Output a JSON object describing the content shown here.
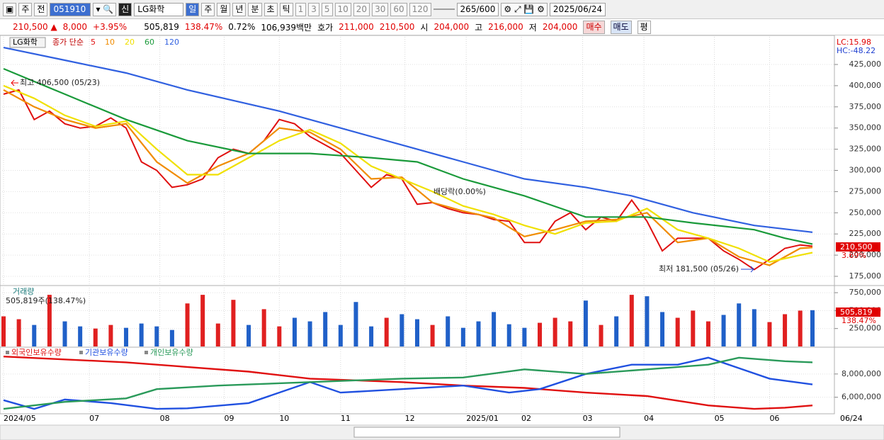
{
  "toolbar": [
    "주",
    "전",
    "051910",
    "LG화학",
    "신",
    "일",
    "주",
    "월",
    "년",
    "분",
    "초",
    "틱",
    "1",
    "3",
    "5",
    "10",
    "20",
    "30",
    "60",
    "120",
    "265",
    "/600",
    "2025/06/24"
  ],
  "info_bar": [
    "210,500 ▲",
    "8,000",
    "+3.95%",
    "505,819",
    "138.47%",
    "0.72%",
    "106,939백만",
    "호가",
    "211,000",
    "210,500",
    "시",
    "204,000",
    "고",
    "216,000",
    "저",
    "204,000",
    "매수",
    "매도",
    "평"
  ],
  "chart_data": [
    {
      "type": "line",
      "title": "LG화학",
      "legend_title": "종가 단순",
      "xlim": [
        0,
        264
      ],
      "ylim": [
        168300,
        452600
      ],
      "yticks": [
        {
          "value": 175000,
          "label": "175,000"
        },
        {
          "value": 200000,
          "label": "200,000"
        },
        {
          "value": 225000,
          "label": "225,000"
        },
        {
          "value": 250000,
          "label": "250,000"
        },
        {
          "value": 275000,
          "label": "275,000"
        },
        {
          "value": 300000,
          "label": "300,000"
        },
        {
          "value": 325000,
          "label": "325,000"
        },
        {
          "value": 350000,
          "label": "350,000"
        },
        {
          "value": 375000,
          "label": "375,000"
        },
        {
          "value": 400000,
          "label": "400,000"
        },
        {
          "value": 425000,
          "label": "425,000"
        }
      ],
      "grid": true,
      "series": [
        {
          "name": "5",
          "color": "#e01010",
          "x": [
            0,
            5,
            10,
            15,
            20,
            25,
            30,
            35,
            40,
            45,
            50,
            55,
            60,
            65,
            70,
            75,
            80,
            85,
            90,
            95,
            100,
            105,
            110,
            115,
            120,
            125,
            130,
            135,
            140,
            145,
            150,
            155,
            160,
            165,
            170,
            175,
            180,
            185,
            190,
            195,
            200,
            205,
            210,
            215,
            220,
            225,
            230,
            235,
            240,
            245,
            250,
            255,
            260,
            264
          ],
          "values": [
            390000,
            395000,
            360000,
            370000,
            355000,
            350000,
            352000,
            362000,
            350000,
            310000,
            300000,
            280000,
            283000,
            290000,
            315000,
            325000,
            320000,
            335000,
            360000,
            355000,
            340000,
            330000,
            320000,
            300000,
            280000,
            295000,
            290000,
            260000,
            262000,
            255000,
            250000,
            248000,
            242000,
            240000,
            215000,
            215000,
            240000,
            250000,
            230000,
            245000,
            240000,
            265000,
            240000,
            205000,
            220000,
            220000,
            220000,
            205000,
            195000,
            183000,
            195000,
            208000,
            212000,
            210500
          ]
        },
        {
          "name": "10",
          "color": "#f08c00",
          "x": [
            0,
            10,
            20,
            30,
            40,
            50,
            60,
            70,
            80,
            90,
            100,
            110,
            120,
            130,
            140,
            150,
            160,
            170,
            180,
            190,
            200,
            210,
            220,
            230,
            240,
            250,
            260,
            264
          ],
          "values": [
            395000,
            375000,
            360000,
            350000,
            355000,
            310000,
            285000,
            305000,
            320000,
            350000,
            345000,
            325000,
            290000,
            292000,
            262000,
            252000,
            244000,
            222000,
            230000,
            240000,
            242000,
            250000,
            215000,
            220000,
            198000,
            188000,
            208000,
            209000
          ]
        },
        {
          "name": "20",
          "color": "#f0e000",
          "x": [
            0,
            10,
            20,
            30,
            40,
            50,
            60,
            70,
            80,
            90,
            100,
            110,
            120,
            130,
            140,
            150,
            160,
            170,
            180,
            190,
            200,
            210,
            220,
            230,
            240,
            250,
            260,
            264
          ],
          "values": [
            400000,
            385000,
            365000,
            352000,
            358000,
            325000,
            295000,
            295000,
            315000,
            335000,
            348000,
            332000,
            305000,
            290000,
            275000,
            258000,
            248000,
            235000,
            225000,
            238000,
            240000,
            255000,
            230000,
            220000,
            208000,
            192000,
            200000,
            203000
          ]
        },
        {
          "name": "60",
          "color": "#1a9a3a",
          "x": [
            0,
            20,
            40,
            60,
            80,
            100,
            120,
            135,
            150,
            170,
            190,
            210,
            225,
            245,
            255,
            264
          ],
          "values": [
            420000,
            390000,
            360000,
            335000,
            320000,
            320000,
            315000,
            310000,
            290000,
            270000,
            245000,
            245000,
            238000,
            230000,
            220000,
            213000
          ]
        },
        {
          "name": "120",
          "color": "#3060e0",
          "x": [
            0,
            20,
            40,
            60,
            90,
            110,
            130,
            150,
            170,
            190,
            205,
            225,
            245,
            264
          ],
          "values": [
            445000,
            430000,
            415000,
            395000,
            370000,
            350000,
            330000,
            310000,
            290000,
            280000,
            270000,
            250000,
            235000,
            227000
          ]
        }
      ],
      "annotations": [
        "최고 406,500 (05/23)",
        "배당락(0.00%)",
        "최저 181,500 (05/26)"
      ],
      "right_labels": [
        "LC:15.98",
        "HC:-48.22",
        "210,500",
        "3.69%"
      ]
    },
    {
      "type": "bar",
      "title": "거래량",
      "subtitle": "505,819주(138.47%)",
      "xlim": [
        0,
        264
      ],
      "ylim": [
        0,
        800000
      ],
      "yticks": [
        {
          "value": 250000,
          "label": "250,000"
        },
        {
          "value": 500000,
          "label": "500,000"
        },
        {
          "value": 750000,
          "label": "750,000"
        }
      ],
      "colors": {
        "up": "#e02020",
        "down": "#2060c8"
      },
      "x": [
        0,
        5,
        10,
        15,
        20,
        25,
        30,
        35,
        40,
        45,
        50,
        55,
        60,
        65,
        70,
        75,
        80,
        85,
        90,
        95,
        100,
        105,
        110,
        115,
        120,
        125,
        130,
        135,
        140,
        145,
        150,
        155,
        160,
        165,
        170,
        175,
        180,
        185,
        190,
        195,
        200,
        205,
        210,
        215,
        220,
        225,
        230,
        235,
        240,
        245,
        250,
        255,
        260,
        264
      ],
      "values": [
        420000,
        380000,
        300000,
        720000,
        350000,
        280000,
        250000,
        300000,
        260000,
        320000,
        280000,
        230000,
        600000,
        720000,
        320000,
        650000,
        300000,
        520000,
        280000,
        400000,
        350000,
        480000,
        300000,
        620000,
        280000,
        400000,
        450000,
        380000,
        300000,
        420000,
        260000,
        350000,
        480000,
        310000,
        260000,
        330000,
        400000,
        350000,
        640000,
        300000,
        420000,
        720000,
        700000,
        480000,
        400000,
        500000,
        350000,
        440000,
        600000,
        520000,
        340000,
        450000,
        500000,
        505819
      ],
      "right_labels": [
        "505,819",
        "138.47%"
      ]
    },
    {
      "type": "line",
      "xlim": [
        0,
        264
      ],
      "ylim": [
        4700000,
        10000000
      ],
      "yticks": [
        {
          "value": 6000000,
          "label": "6,000,000"
        },
        {
          "value": 8000000,
          "label": "8,000,000"
        }
      ],
      "xticks": [
        {
          "value": 0,
          "label": "2024/05"
        },
        {
          "value": 28,
          "label": "07"
        },
        {
          "value": 51,
          "label": "08"
        },
        {
          "value": 72,
          "label": "09"
        },
        {
          "value": 90,
          "label": "10"
        },
        {
          "value": 110,
          "label": "11"
        },
        {
          "value": 131,
          "label": "12"
        },
        {
          "value": 151,
          "label": "2025/01"
        },
        {
          "value": 169,
          "label": "02"
        },
        {
          "value": 189,
          "label": "03"
        },
        {
          "value": 209,
          "label": "04"
        },
        {
          "value": 232,
          "label": "05"
        },
        {
          "value": 250,
          "label": "06"
        }
      ],
      "x_end_label": "06/24",
      "series": [
        {
          "name": "외국인보유수량",
          "color": "#e01010",
          "x": [
            0,
            40,
            80,
            100,
            130,
            150,
            170,
            190,
            210,
            230,
            245,
            255,
            264
          ],
          "values": [
            9500000,
            9000000,
            8200000,
            7600000,
            7300000,
            7000000,
            6800000,
            6400000,
            6100000,
            5300000,
            5000000,
            5100000,
            5300000
          ]
        },
        {
          "name": "기관보유수량",
          "color": "#2050e0",
          "x": [
            0,
            10,
            20,
            35,
            50,
            60,
            80,
            100,
            110,
            130,
            150,
            165,
            175,
            190,
            205,
            220,
            230,
            240,
            250,
            264
          ],
          "values": [
            5750000,
            5000000,
            5800000,
            5500000,
            5000000,
            5050000,
            5500000,
            7300000,
            6400000,
            6700000,
            7000000,
            6400000,
            6700000,
            8000000,
            8800000,
            8800000,
            9400000,
            8500000,
            7600000,
            7100000
          ]
        },
        {
          "name": "개인보유수량",
          "color": "#2a9a5a",
          "x": [
            0,
            20,
            40,
            50,
            70,
            100,
            130,
            150,
            170,
            190,
            210,
            230,
            240,
            255,
            264
          ],
          "values": [
            5000000,
            5600000,
            5900000,
            6700000,
            7000000,
            7300000,
            7600000,
            7700000,
            8400000,
            8000000,
            8400000,
            8800000,
            9400000,
            9100000,
            9000000
          ]
        }
      ]
    }
  ]
}
